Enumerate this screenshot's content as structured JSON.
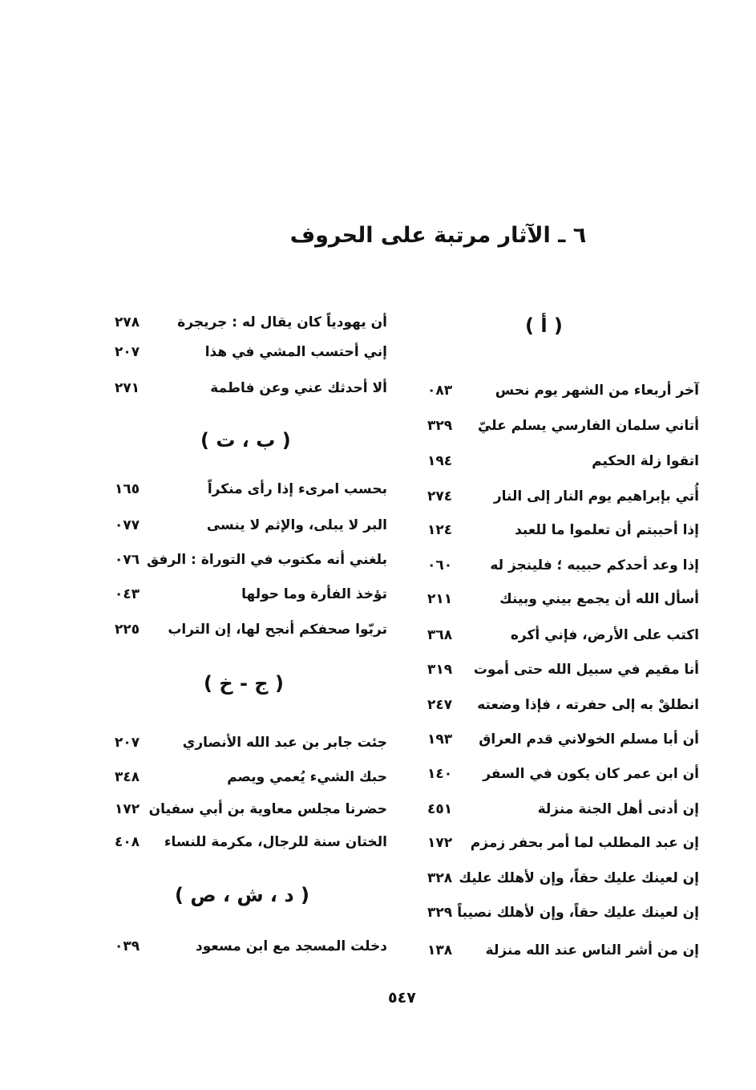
{
  "title": "٦ ـ الآثار مرتبة على الحروف",
  "right_column": {
    "heading": "( أ )",
    "entries": [
      {
        "text": "آخر أربعاء من الشهر يوم نحس",
        "page": "٠٨٣"
      },
      {
        "text": "أتاني سلمان الفارسي يسلم عليّ",
        "page": "٣٢٩"
      },
      {
        "text": "اتقوا زلة الحكيم",
        "page": "١٩٤"
      },
      {
        "text": "أُتي بإبراهيم يوم النار إلى النار",
        "page": "٢٧٤"
      },
      {
        "text": "إذا أحببتم أن تعلموا ما للعبد",
        "page": "١٢٤"
      },
      {
        "text": "إذا وعد أحدكم حبيبه ؛ فلينجز له",
        "page": "٠٦٠"
      },
      {
        "text": "أسأل الله أن يجمع بيني وبينك",
        "page": "٢١١"
      },
      {
        "text": "اكتب على الأرض، فإني أكره",
        "page": "٣٦٨"
      },
      {
        "text": "أنا مقيم في سبيل الله حتى أموت",
        "page": "٣١٩"
      },
      {
        "text": "انطلقْ به إلى حفرته ، فإذا وضعته",
        "page": "٢٤٧"
      },
      {
        "text": "أن أبا مسلم الخولاني قدم العراق",
        "page": "١٩٣"
      },
      {
        "text": "أن ابن عمر كان يكون في السفر",
        "page": "١٤٠"
      },
      {
        "text": "إن أدنى أهل الجنة منزلة",
        "page": "٤٥١"
      },
      {
        "text": "إن عبد المطلب لما أمر بحفر زمزم",
        "page": "١٧٢"
      },
      {
        "text": "إن لعينك عليك حقاً، وإن لأهلك عليك",
        "page": "٣٢٨"
      },
      {
        "text": "إن لعينك عليك حقاً، وإن لأهلك نصيباً",
        "page": "٣٢٩"
      },
      {
        "text": "إن من أشر الناس عند الله منزلة",
        "page": "١٣٨"
      }
    ]
  },
  "left_column": {
    "entries_top": [
      {
        "text": "أن يهودياً كان يقال له : جريجرة",
        "page": "٢٧٨"
      },
      {
        "text": "إني أحتسب المشي في هذا",
        "page": "٢٠٧"
      },
      {
        "text": "ألا أحدثك عني وعن فاطمة",
        "page": "٢٧١"
      }
    ],
    "sections": [
      {
        "heading": "( ب ، ت )",
        "entries": [
          {
            "text": "بحسب امرىء إذا رأى منكراً",
            "page": "١٦٥"
          },
          {
            "text": "البر لا يبلى، والإثم لا ينسى",
            "page": "٠٧٧"
          },
          {
            "text": "بلغني أنه مكتوب في التوراة : الرفق",
            "page": "٠٧٦"
          },
          {
            "text": "تؤخذ الفأرة وما حولها",
            "page": "٠٤٣"
          },
          {
            "text": "تربّوا صحفكم أنجح لها، إن التراب",
            "page": "٢٢٥"
          }
        ]
      },
      {
        "heading": "( ج - خ )",
        "entries": [
          {
            "text": "جئت جابر بن عبد الله الأنصاري",
            "page": "٢٠٧"
          },
          {
            "text": "حبك الشيء يُعمي ويصم",
            "page": "٣٤٨"
          },
          {
            "text": "حضرنا مجلس معاوية بن أبي سفيان",
            "page": "١٧٢"
          },
          {
            "text": "الختان سنة للرجال، مكرمة للنساء",
            "page": "٤٠٨"
          }
        ]
      },
      {
        "heading": "( د ، ش ، ص )",
        "entries": [
          {
            "text": "دخلت المسجد مع ابن مسعود",
            "page": "٠٣٩"
          }
        ]
      }
    ]
  },
  "page_number": "٥٤٧"
}
